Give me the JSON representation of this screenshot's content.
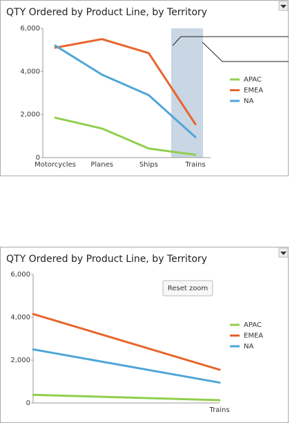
{
  "chart_data": [
    {
      "type": "line",
      "title": "QTY Ordered by Product Line, by Territory",
      "categories": [
        "Motorcycles",
        "Planes",
        "Ships",
        "Trains"
      ],
      "series": [
        {
          "name": "APAC",
          "color": "#8fcf4c",
          "values": [
            1850,
            1350,
            420,
            130
          ]
        },
        {
          "name": "EMEA",
          "color": "#e8642c",
          "values": [
            5100,
            5500,
            4850,
            1550
          ]
        },
        {
          "name": "NA",
          "color": "#4ea6d8",
          "values": [
            5200,
            3850,
            2900,
            950
          ]
        }
      ],
      "ylim": [
        0,
        6000
      ],
      "yticks": [
        0,
        {
          "value": 2000,
          "label": "2,000"
        },
        {
          "value": 4000,
          "label": "4,000"
        },
        {
          "value": 6000,
          "label": "6,000"
        }
      ],
      "legend": "right"
    },
    {
      "type": "line",
      "title": "QTY Ordered by Product Line, by Territory",
      "categories": [
        null,
        "Trains"
      ],
      "series": [
        {
          "name": "APAC",
          "color": "#8fcf4c",
          "values": [
            380,
            130
          ]
        },
        {
          "name": "EMEA",
          "color": "#e8642c",
          "values": [
            4150,
            1550
          ]
        },
        {
          "name": "NA",
          "color": "#4ea6d8",
          "values": [
            2500,
            950
          ]
        }
      ],
      "ylim": [
        0,
        6000
      ],
      "yticks": [
        0,
        {
          "value": 2000,
          "label": "2,000"
        },
        {
          "value": 4000,
          "label": "4,000"
        },
        {
          "value": 6000,
          "label": "6,000"
        }
      ],
      "legend": "right",
      "button": "Reset zoom"
    }
  ]
}
